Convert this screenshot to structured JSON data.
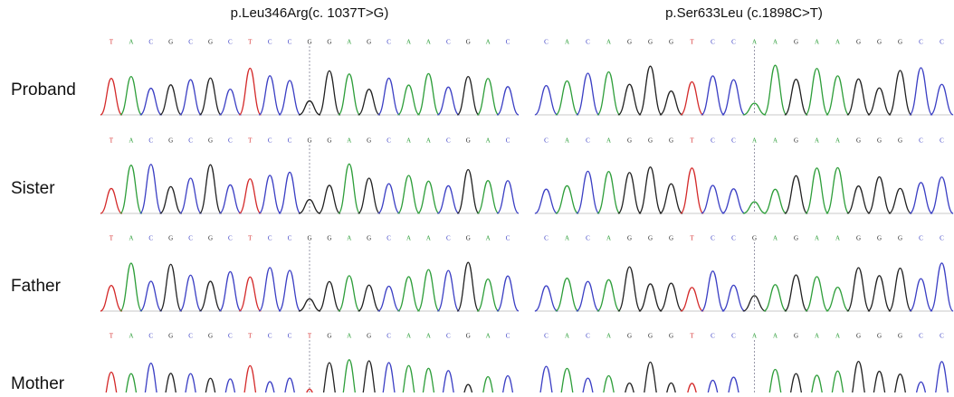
{
  "columns": [
    {
      "title": "p.Leu346Arg(c. 1037T>G)",
      "sequences": [
        [
          "T",
          "A",
          "C",
          "G",
          "C",
          "G",
          "C",
          "T",
          "C",
          "C",
          "G",
          "G",
          "A",
          "G",
          "C",
          "A",
          "A",
          "C",
          "G",
          "A",
          "C"
        ],
        [
          "T",
          "A",
          "C",
          "G",
          "C",
          "G",
          "C",
          "T",
          "C",
          "C",
          "G",
          "G",
          "A",
          "G",
          "C",
          "A",
          "A",
          "C",
          "G",
          "A",
          "C"
        ],
        [
          "T",
          "A",
          "C",
          "G",
          "C",
          "G",
          "C",
          "T",
          "C",
          "C",
          "G",
          "G",
          "A",
          "G",
          "C",
          "A",
          "A",
          "C",
          "G",
          "A",
          "C"
        ],
        [
          "T",
          "A",
          "C",
          "G",
          "C",
          "G",
          "C",
          "T",
          "C",
          "C",
          "T",
          "G",
          "A",
          "G",
          "C",
          "A",
          "A",
          "C",
          "G",
          "A",
          "C"
        ]
      ]
    },
    {
      "title": "p.Ser633Leu (c.1898C>T)",
      "sequences": [
        [
          "C",
          "A",
          "C",
          "A",
          "G",
          "G",
          "G",
          "T",
          "C",
          "C",
          "A",
          "A",
          "G",
          "A",
          "A",
          "G",
          "G",
          "G",
          "C",
          "C"
        ],
        [
          "C",
          "A",
          "C",
          "A",
          "G",
          "G",
          "G",
          "T",
          "C",
          "C",
          "A",
          "A",
          "G",
          "A",
          "A",
          "G",
          "G",
          "G",
          "C",
          "C"
        ],
        [
          "C",
          "A",
          "C",
          "A",
          "G",
          "G",
          "G",
          "T",
          "C",
          "C",
          "G",
          "A",
          "G",
          "A",
          "A",
          "G",
          "G",
          "G",
          "C",
          "C"
        ],
        [
          "C",
          "A",
          "C",
          "A",
          "G",
          "G",
          "G",
          "T",
          "C",
          "C",
          "A",
          "A",
          "G",
          "A",
          "A",
          "G",
          "G",
          "G",
          "C",
          "C"
        ]
      ]
    }
  ],
  "rows": [
    "Proband",
    "Sister",
    "Father",
    "Mother"
  ]
}
